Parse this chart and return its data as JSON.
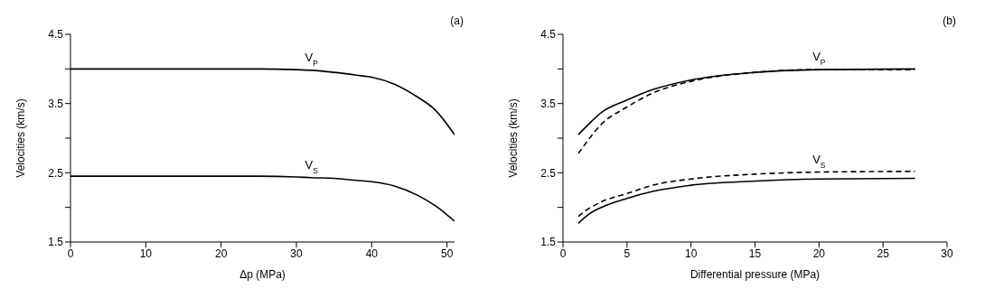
{
  "chart_data": [
    {
      "type": "line",
      "annotations": [
        "(a)"
      ],
      "xlabel": "Δp (MPa)",
      "ylabel": "Velocities (km/s)",
      "xlim": [
        0,
        51
      ],
      "xticks": [
        0,
        10,
        20,
        30,
        40,
        50
      ],
      "ylim": [
        1.5,
        4.5
      ],
      "yticks": [
        1.5,
        {
          "value": 2,
          "label": null
        },
        2.5,
        {
          "value": 3,
          "label": null
        },
        3.5,
        {
          "value": 4,
          "label": null
        },
        4.5
      ],
      "grid": false,
      "legend": false,
      "marker": "none",
      "line_style": "solid",
      "series": [
        {
          "name": "V$_{P}$",
          "color": "#000000",
          "x": [
            0,
            10,
            20,
            25,
            30,
            32,
            35,
            38,
            40,
            43,
            46,
            48.5,
            51
          ],
          "values": [
            4.0,
            4.0,
            4.0,
            4.0,
            3.99,
            3.98,
            3.95,
            3.91,
            3.88,
            3.78,
            3.6,
            3.4,
            3.05
          ]
        },
        {
          "name": "V$_{S}$",
          "color": "#000000",
          "x": [
            0,
            10,
            20,
            25,
            30,
            32,
            35,
            38,
            40,
            43,
            46,
            48.5,
            51
          ],
          "values": [
            2.45,
            2.45,
            2.45,
            2.45,
            2.44,
            2.43,
            2.42,
            2.39,
            2.37,
            2.31,
            2.18,
            2.02,
            1.8
          ]
        }
      ]
    },
    {
      "type": "line",
      "annotations": [
        "(b)"
      ],
      "xlabel": "Differential pressure (MPa)",
      "ylabel": "Velocities (km/s)",
      "xlim": [
        0,
        30
      ],
      "xticks": [
        0,
        5,
        10,
        15,
        20,
        25,
        30
      ],
      "ylim": [
        1.5,
        4.5
      ],
      "yticks": [
        1.5,
        {
          "value": 2,
          "label": null
        },
        2.5,
        {
          "value": 3,
          "label": null
        },
        3.5,
        {
          "value": 4,
          "label": null
        },
        4.5
      ],
      "grid": false,
      "legend": false,
      "marker": "none",
      "line_style": "solid",
      "series": [
        {
          "name": "V$_{P}$",
          "color": "#000000",
          "x": [
            1.2,
            2,
            3,
            5,
            7,
            10,
            15,
            20,
            27.5
          ],
          "values": [
            3.05,
            3.2,
            3.37,
            3.55,
            3.7,
            3.84,
            3.95,
            3.99,
            4.0
          ]
        },
        {
          "color": "#000000",
          "line_style": "dashed",
          "x": [
            1.2,
            2,
            3,
            5,
            7,
            10,
            15,
            20,
            27.5
          ],
          "values": [
            2.78,
            2.98,
            3.2,
            3.45,
            3.65,
            3.82,
            3.95,
            3.99,
            3.99
          ]
        },
        {
          "name": "V$_{S}$",
          "color": "#000000",
          "line_style": "dashed",
          "x": [
            1.2,
            2,
            3,
            5,
            7,
            10,
            15,
            20,
            27.5
          ],
          "values": [
            1.87,
            1.98,
            2.08,
            2.2,
            2.32,
            2.41,
            2.48,
            2.51,
            2.52
          ]
        },
        {
          "color": "#000000",
          "x": [
            1.2,
            2,
            3,
            5,
            7,
            10,
            15,
            20,
            27.5
          ],
          "values": [
            1.77,
            1.9,
            2.0,
            2.13,
            2.23,
            2.32,
            2.38,
            2.41,
            2.42
          ]
        }
      ]
    }
  ]
}
